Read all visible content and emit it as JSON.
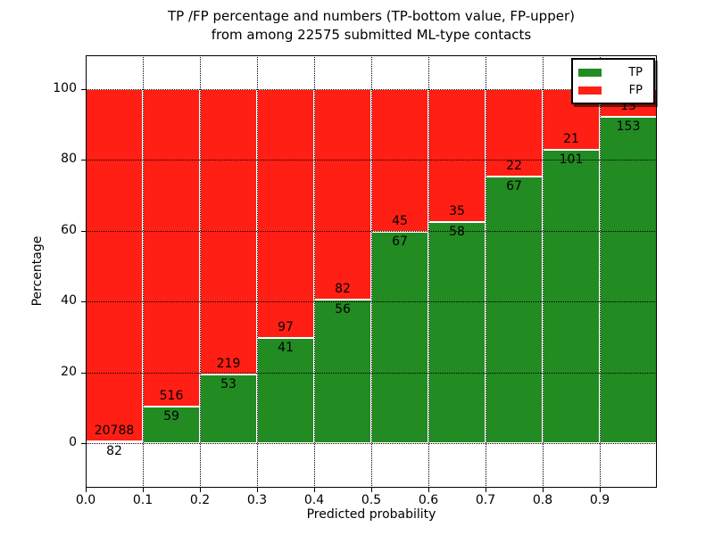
{
  "chart_data": {
    "type": "bar",
    "stacked": true,
    "normalized_to_percent": true,
    "title_line1": "TP /FP percentage and numbers (TP-bottom value, FP-upper)",
    "title_line2": "from among 22575 submitted ML-type contacts",
    "xlabel": "Predicted probability",
    "ylabel": "Percentage",
    "x_tick_labels": [
      "0.0",
      "0.1",
      "0.2",
      "0.3",
      "0.4",
      "0.5",
      "0.6",
      "0.7",
      "0.8",
      "0.9"
    ],
    "x_range": [
      0.0,
      1.0
    ],
    "bin_width": 0.1,
    "y_ticks": [
      0,
      20,
      40,
      60,
      80,
      100
    ],
    "ylim": [
      -12.6,
      109.6
    ],
    "grid": "dotted",
    "categories": [
      "0.0-0.1",
      "0.1-0.2",
      "0.2-0.3",
      "0.3-0.4",
      "0.4-0.5",
      "0.5-0.6",
      "0.6-0.7",
      "0.7-0.8",
      "0.8-0.9",
      "0.9-1.0"
    ],
    "series": [
      {
        "name": "TP",
        "color": "#228b22",
        "values": [
          82,
          59,
          53,
          41,
          56,
          67,
          58,
          67,
          101,
          153
        ]
      },
      {
        "name": "FP",
        "color": "#ff1f14",
        "values": [
          20788,
          516,
          219,
          97,
          82,
          45,
          35,
          22,
          21,
          13
        ]
      }
    ],
    "total_contacts": 22575,
    "legend": {
      "position": "upper right",
      "entries": [
        {
          "label": "TP",
          "color": "#228b22"
        },
        {
          "label": "FP",
          "color": "#ff1f14"
        }
      ]
    }
  }
}
